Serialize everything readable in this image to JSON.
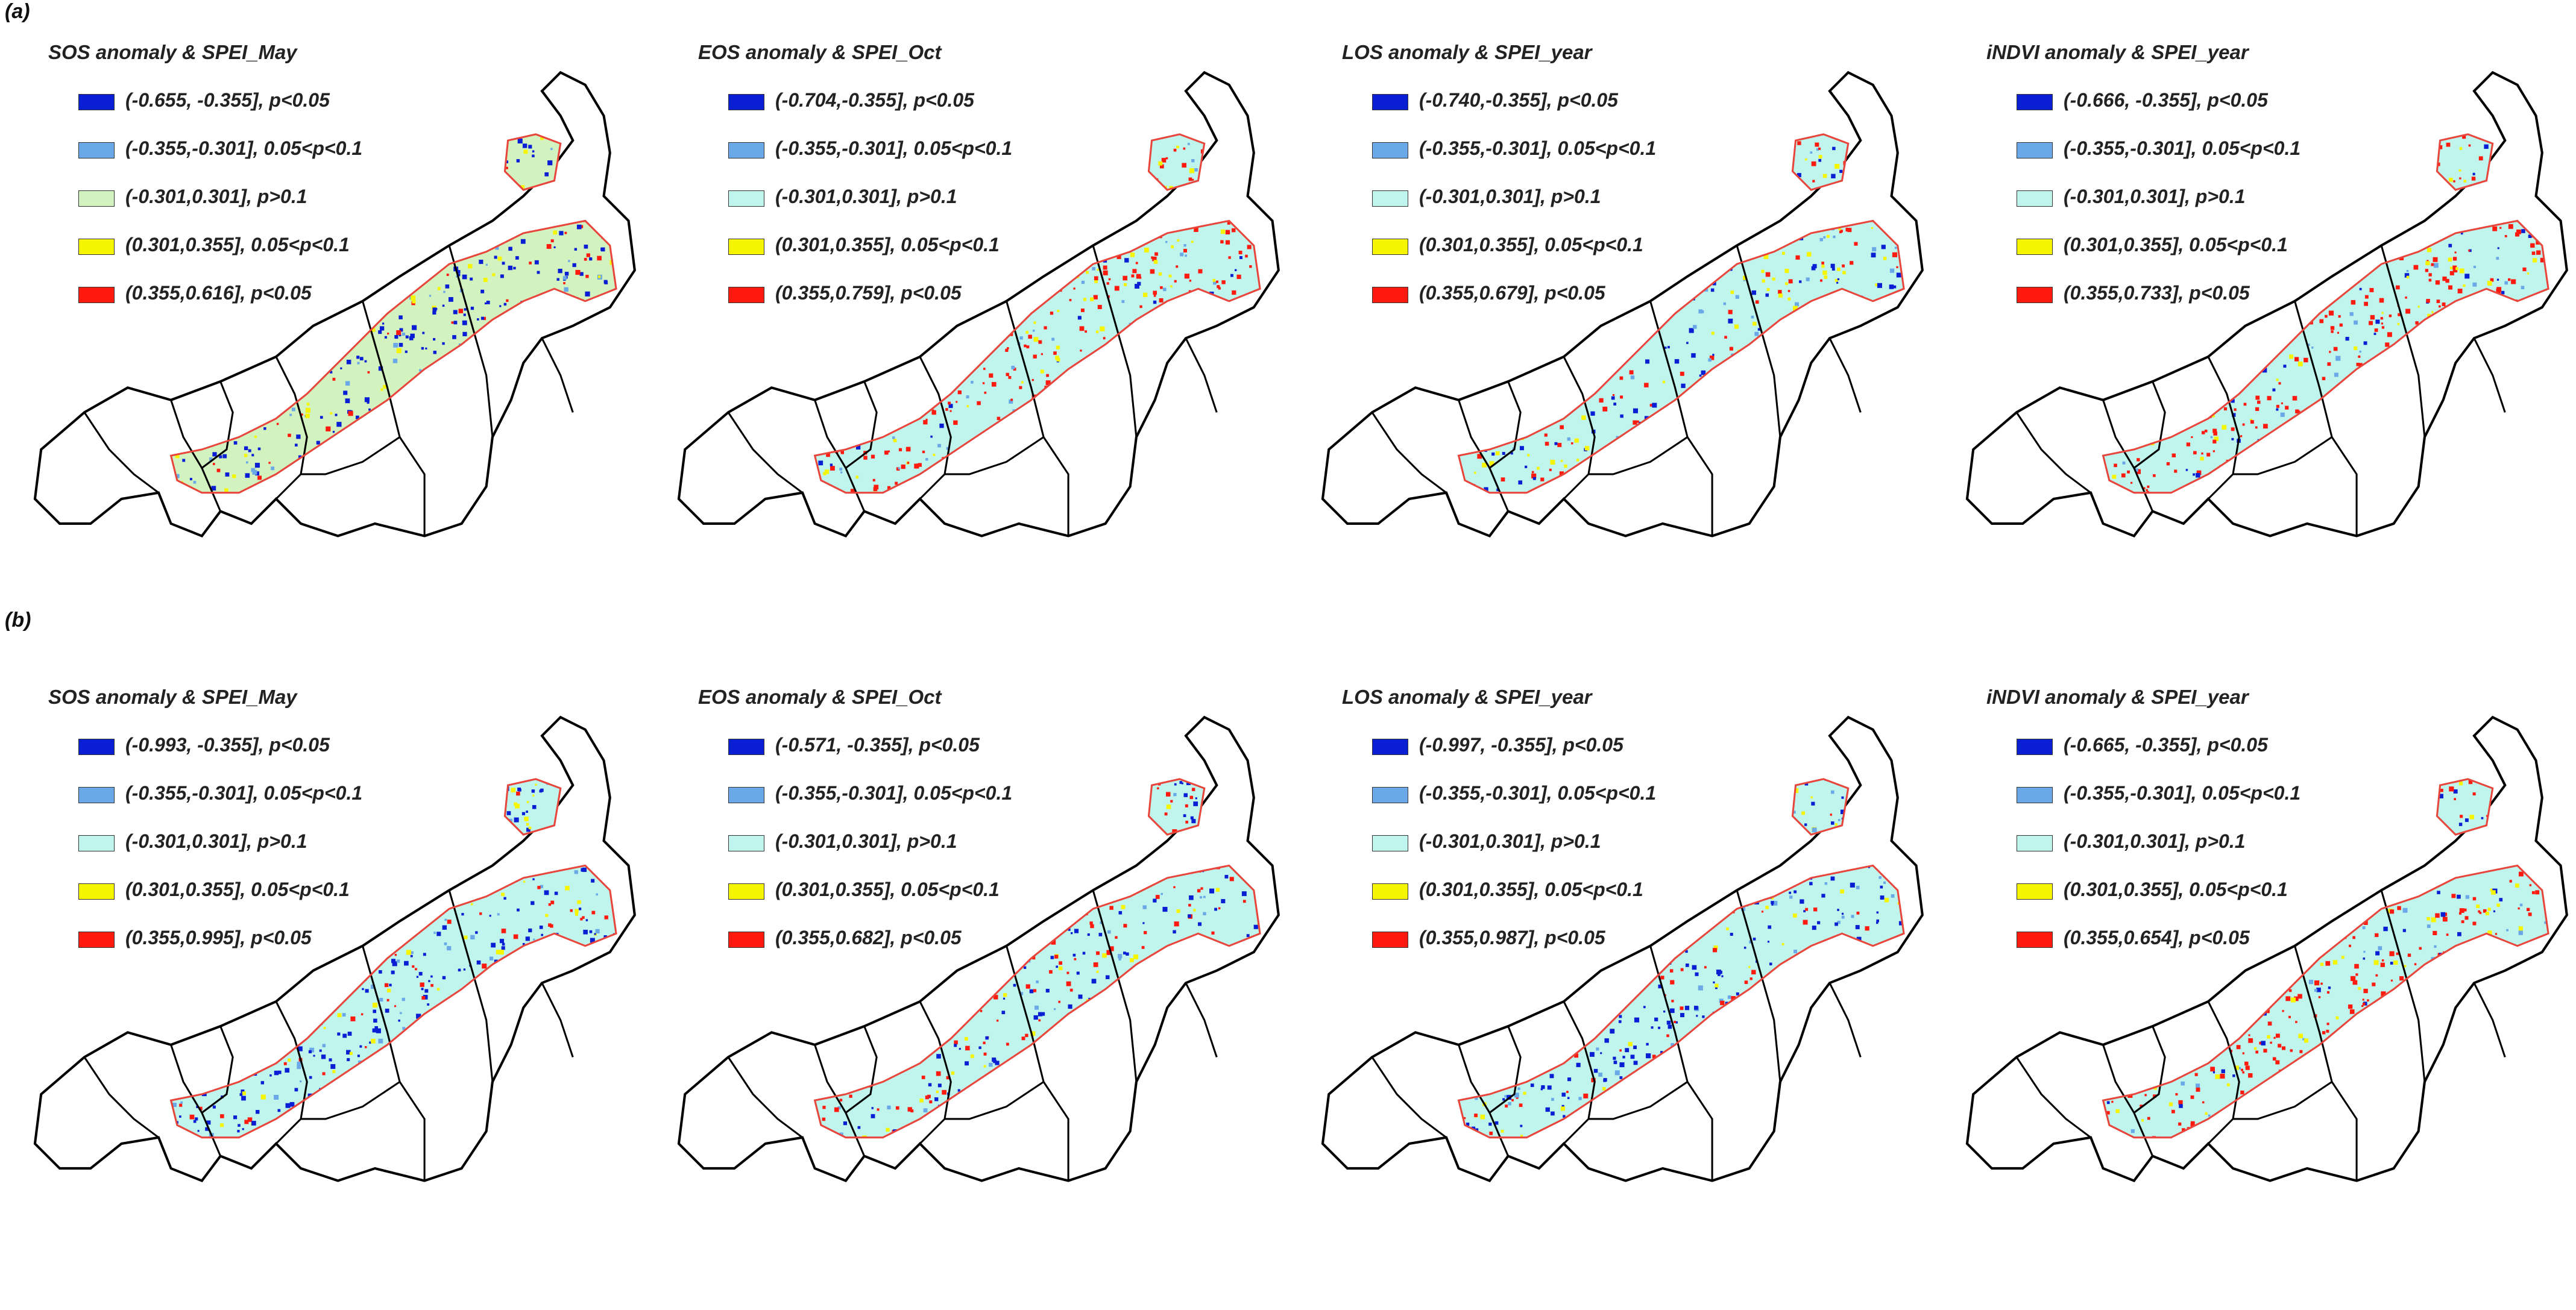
{
  "figure": {
    "rows": [
      {
        "label": "(a)",
        "panels": [
          {
            "title": "SOS anomaly & SPEI_May",
            "legend": [
              "(-0.655, -0.355], p<0.05",
              "(-0.355,-0.301], 0.05<p<0.1",
              "(-0.301,0.301], p>0.1",
              "(0.301,0.355], 0.05<p<0.1",
              "(0.355,0.616], p<0.05"
            ],
            "background_class": "light-green",
            "dominant_class": "dark-blue"
          },
          {
            "title": "EOS anomaly & SPEI_Oct",
            "legend": [
              "(-0.704,-0.355], p<0.05",
              "(-0.355,-0.301], 0.05<p<0.1",
              "(-0.301,0.301], p>0.1",
              "(0.301,0.355], 0.05<p<0.1",
              "(0.355,0.759], p<0.05"
            ],
            "background_class": "cyan",
            "dominant_class": "red"
          },
          {
            "title": "LOS anomaly & SPEI_year",
            "legend": [
              "(-0.740,-0.355], p<0.05",
              "(-0.355,-0.301], 0.05<p<0.1",
              "(-0.301,0.301], p>0.1",
              "(0.301,0.355], 0.05<p<0.1",
              "(0.355,0.679], p<0.05"
            ],
            "background_class": "cyan",
            "dominant_class": "mixed"
          },
          {
            "title": "iNDVI anomaly & SPEI_year",
            "legend": [
              "(-0.666, -0.355], p<0.05",
              "(-0.355,-0.301], 0.05<p<0.1",
              "(-0.301,0.301], p>0.1",
              "(0.301,0.355], 0.05<p<0.1",
              "(0.355,0.733], p<0.05"
            ],
            "background_class": "cyan",
            "dominant_class": "red"
          }
        ]
      },
      {
        "label": "(b)",
        "panels": [
          {
            "title": "SOS anomaly & SPEI_May",
            "legend": [
              "(-0.993, -0.355], p<0.05",
              "(-0.355,-0.301], 0.05<p<0.1",
              "(-0.301,0.301], p>0.1",
              "(0.301,0.355], 0.05<p<0.1",
              "(0.355,0.995], p<0.05"
            ],
            "background_class": "cyan",
            "dominant_class": "dark-blue"
          },
          {
            "title": "EOS anomaly & SPEI_Oct",
            "legend": [
              "(-0.571, -0.355], p<0.05",
              "(-0.355,-0.301], 0.05<p<0.1",
              "(-0.301,0.301], p>0.1",
              "(0.301,0.355], 0.05<p<0.1",
              "(0.355,0.682], p<0.05"
            ],
            "background_class": "cyan",
            "dominant_class": "mixed"
          },
          {
            "title": "LOS anomaly & SPEI_year",
            "legend": [
              "(-0.997, -0.355], p<0.05",
              "(-0.355,-0.301], 0.05<p<0.1",
              "(-0.301,0.301], p>0.1",
              "(0.301,0.355], 0.05<p<0.1",
              "(0.355,0.987], p<0.05"
            ],
            "background_class": "cyan",
            "dominant_class": "dark-blue"
          },
          {
            "title": "iNDVI anomaly & SPEI_year",
            "legend": [
              "(-0.665, -0.355], p<0.05",
              "(-0.355,-0.301], 0.05<p<0.1",
              "(-0.301,0.301], p>0.1",
              "(0.301,0.355], 0.05<p<0.1",
              "(0.355,0.654], p<0.05"
            ],
            "background_class": "cyan",
            "dominant_class": "red"
          }
        ]
      }
    ]
  },
  "colors": {
    "dark-blue": "#0a1fd4",
    "light-blue": "#6aa8e8",
    "cyan": "#bff5ec",
    "light-green": "#d2f2c0",
    "yellow": "#f5f500",
    "red": "#ff1a10",
    "boundary": "#000000",
    "region_outline": "#e8463c"
  },
  "legend_color_classes": {
    "row_a_panel_1": [
      "dark-blue",
      "light-blue",
      "light-green",
      "yellow",
      "red"
    ],
    "default": [
      "dark-blue",
      "light-blue",
      "cyan",
      "yellow",
      "red"
    ]
  }
}
